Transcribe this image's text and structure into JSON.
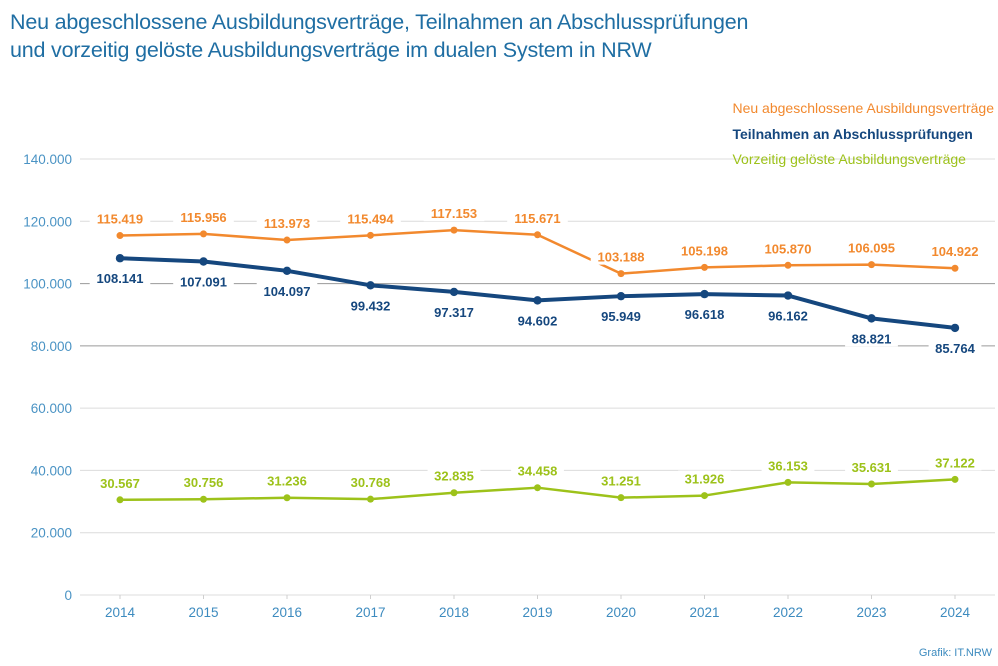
{
  "title_lines": [
    "Neu abgeschlossene Ausbildungsverträge, Teilnahmen an Abschlussprüfungen",
    "und vorzeitig gelöste Ausbildungsverträge im dualen System in NRW"
  ],
  "source": "Grafik: IT.NRW",
  "chart_data": {
    "type": "line",
    "title": "Neu abgeschlossene Ausbildungsverträge, Teilnahmen an Abschlussprüfungen und vorzeitig gelöste Ausbildungsverträge im dualen System in NRW",
    "xlabel": "",
    "ylabel": "",
    "x": [
      "2014",
      "2015",
      "2016",
      "2017",
      "2018",
      "2019",
      "2020",
      "2021",
      "2022",
      "2023",
      "2024"
    ],
    "ylim": [
      0,
      140000
    ],
    "yticks": [
      0,
      20000,
      40000,
      60000,
      80000,
      100000,
      120000,
      140000
    ],
    "ytick_labels": [
      "0",
      "20.000",
      "40.000",
      "60.000",
      "80.000",
      "100.000",
      "120.000",
      "140.000"
    ],
    "grid": true,
    "legend_position": "top-right",
    "series": [
      {
        "name": "Neu abgeschlossene Ausbildungsverträge",
        "color": "#f2892e",
        "values": [
          115419,
          115956,
          113973,
          115494,
          117153,
          115671,
          103188,
          105198,
          105870,
          106095,
          104922
        ],
        "labels": [
          "115.419",
          "115.956",
          "113.973",
          "115.494",
          "117.153",
          "115.671",
          "103.188",
          "105.198",
          "105.870",
          "106.095",
          "104.922"
        ],
        "label_position": "above"
      },
      {
        "name": "Teilnahmen an Abschlussprüfungen",
        "color": "#15477e",
        "values": [
          108141,
          107091,
          104097,
          99432,
          97317,
          94602,
          95949,
          96618,
          96162,
          88821,
          85764
        ],
        "labels": [
          "108.141",
          "107.091",
          "104.097",
          "99.432",
          "97.317",
          "94.602",
          "95.949",
          "96.618",
          "96.162",
          "88.821",
          "85.764"
        ],
        "label_position": "below"
      },
      {
        "name": "Vorzeitig gelöste Ausbildungsverträge",
        "color": "#9dc21a",
        "values": [
          30567,
          30756,
          31236,
          30768,
          32835,
          34458,
          31251,
          31926,
          36153,
          35631,
          37122
        ],
        "labels": [
          "30.567",
          "30.756",
          "31.236",
          "30.768",
          "32.835",
          "34.458",
          "31.251",
          "31.926",
          "36.153",
          "35.631",
          "37.122"
        ],
        "label_position": "above"
      }
    ]
  }
}
